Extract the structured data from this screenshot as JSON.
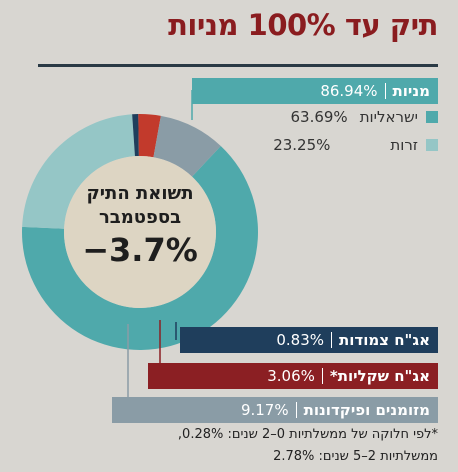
{
  "title": "תיק עד 100% מניות",
  "center": {
    "line1": "תשואת התיק",
    "line2": "בספטמבר",
    "value": "−3.7%"
  },
  "labels": {
    "stocks": {
      "name": "מניות",
      "value": "86.94%"
    },
    "israeli": {
      "name": "ישראליות",
      "value": "63.69%"
    },
    "foreign": {
      "name": "זרות",
      "value": "23.25%"
    },
    "corp_bonds": {
      "name": "אג\"ח צמודות",
      "value": "0.83%"
    },
    "shekel_bonds": {
      "name": "אג\"ח שקליות*",
      "value": "3.06%"
    },
    "cash": {
      "name": "מזומנים ופיקדונות",
      "value": "9.17%"
    }
  },
  "footnote": {
    "line1": "*לפי חלוקה של ממשלתיות 0–2 שנים: 0.28%,",
    "line2": "ממשלתיות 2–5 שנים: 2.78%"
  },
  "chart_data": {
    "type": "pie",
    "donut": true,
    "title": "תיק עד 100% מניות",
    "slices": [
      {
        "label": "ישראליות",
        "value": 63.69,
        "color": "#4fa9ab"
      },
      {
        "label": "זרות",
        "value": 23.25,
        "color": "#95c6c6"
      },
      {
        "label": "אג\"ח צמודות",
        "value": 0.83,
        "color": "#1f3e5c"
      },
      {
        "label": "אג\"ח שקליות*",
        "value": 3.06,
        "color": "#c23a2c"
      },
      {
        "label": "מזומנים ופיקדונות",
        "value": 9.17,
        "color": "#8a9ca6"
      }
    ],
    "groups": [
      {
        "label": "מניות",
        "value": 86.94
      }
    ]
  },
  "colors": {
    "stocks_box": "#4fa9ab",
    "israeli": "#4fa9ab",
    "foreign": "#95c6c6",
    "corp_bonds_box": "#1f3e5c",
    "shekel_bonds_box": "#8b1f23",
    "cash_box": "#8a9ca6",
    "center_fill": "#ddd5c3",
    "title": "#8a1c1f"
  }
}
